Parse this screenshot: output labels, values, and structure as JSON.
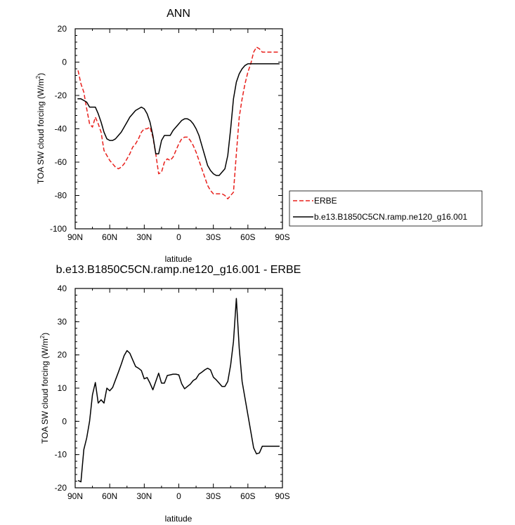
{
  "chart_data": [
    {
      "type": "line",
      "title": "ANN",
      "xlabel": "latitude",
      "ylabel_main": "TOA SW cloud forcing (W/m",
      "ylabel_sup": "2",
      "ylabel_tail": ")",
      "xlim": [
        90,
        -90
      ],
      "ylim": [
        -100,
        20
      ],
      "xticks": [
        {
          "value": 90,
          "label": "90N"
        },
        {
          "value": 60,
          "label": "60N"
        },
        {
          "value": 30,
          "label": "30N"
        },
        {
          "value": 0,
          "label": "0"
        },
        {
          "value": -30,
          "label": "30S"
        },
        {
          "value": -60,
          "label": "60S"
        },
        {
          "value": -90,
          "label": "90S"
        }
      ],
      "yticks": [
        20,
        0,
        -20,
        -40,
        -60,
        -80,
        -100
      ],
      "legend_position": "right",
      "series": [
        {
          "name": "ERBE",
          "color": "#e8201c",
          "dash": "dashed",
          "x": [
            87.5,
            85,
            82.5,
            80,
            77.5,
            75,
            72.5,
            70,
            67.5,
            65,
            62.5,
            60,
            57.5,
            55,
            52.5,
            50,
            47.5,
            45,
            42.5,
            40,
            37.5,
            35,
            32.5,
            30,
            27.5,
            25,
            22.5,
            20,
            17.5,
            15,
            12.5,
            10,
            7.5,
            5,
            2.5,
            0,
            -2.5,
            -5,
            -7.5,
            -10,
            -12.5,
            -15,
            -17.5,
            -20,
            -22.5,
            -25,
            -27.5,
            -30,
            -32.5,
            -35,
            -37.5,
            -40,
            -42.5,
            -45,
            -47.5,
            -50,
            -52.5,
            -55,
            -57.5,
            -60,
            -62.5,
            -65,
            -67.5,
            -70,
            -72.5,
            -75,
            -77.5,
            -80,
            -82.5,
            -85,
            -87.5
          ],
          "y": [
            -5,
            -13,
            -18,
            -28,
            -37,
            -39,
            -33,
            -37,
            -42,
            -53,
            -56,
            -59,
            -61,
            -63,
            -64,
            -63,
            -61,
            -58,
            -55,
            -51,
            -49,
            -46,
            -42,
            -40,
            -40,
            -39,
            -45,
            -55,
            -67,
            -66,
            -60,
            -58,
            -59,
            -57,
            -53,
            -49,
            -46,
            -45,
            -45,
            -47,
            -50,
            -54,
            -59,
            -64,
            -69,
            -74,
            -77,
            -79,
            -79,
            -79,
            -79,
            -80,
            -82,
            -80,
            -78,
            -55,
            -33,
            -22,
            -13,
            -6,
            -1,
            6,
            9,
            8,
            6,
            6,
            6,
            6,
            6,
            6,
            6
          ]
        },
        {
          "name": "b.e13.B1850C5CN.ramp.ne120_g16.001",
          "color": "#000000",
          "dash": "solid",
          "x": [
            88,
            85,
            82.5,
            80,
            77.5,
            75,
            72.5,
            70,
            67.5,
            65,
            62.5,
            60,
            57.5,
            55,
            52.5,
            50,
            47.5,
            45,
            42.5,
            40,
            37.5,
            35,
            32.5,
            30,
            27.5,
            25,
            22.5,
            20,
            17.5,
            15,
            12.5,
            10,
            7.5,
            5,
            2.5,
            0,
            -2.5,
            -5,
            -7.5,
            -10,
            -12.5,
            -15,
            -17.5,
            -20,
            -22.5,
            -25,
            -27.5,
            -30,
            -32.5,
            -35,
            -37.5,
            -40,
            -42.5,
            -45,
            -47.5,
            -50,
            -52.5,
            -55,
            -57.5,
            -60,
            -62.5,
            -65,
            -67.5,
            -70,
            -72.5,
            -75,
            -77.5,
            -80,
            -82.5,
            -85,
            -87.5
          ],
          "y": [
            -22,
            -22,
            -23,
            -24,
            -27,
            -27,
            -27,
            -31,
            -36,
            -42,
            -46,
            -47,
            -47,
            -46,
            -44,
            -42,
            -39,
            -36,
            -33,
            -31,
            -29,
            -28,
            -27,
            -28,
            -31,
            -36,
            -44,
            -55,
            -55,
            -47,
            -44,
            -44,
            -44,
            -41,
            -39,
            -37,
            -35,
            -34,
            -34,
            -35,
            -37,
            -40,
            -44,
            -50,
            -56,
            -62,
            -65,
            -67,
            -68,
            -68,
            -66,
            -64,
            -56,
            -40,
            -22,
            -12,
            -7,
            -4,
            -2,
            -1,
            -1,
            -1,
            -1,
            -1,
            -1,
            -1,
            -1,
            -1,
            -1,
            -1,
            -1
          ]
        }
      ]
    },
    {
      "type": "line",
      "title": "b.e13.B1850C5CN.ramp.ne120_g16.001 - ERBE",
      "xlabel": "latitude",
      "ylabel_main": "TOA SW cloud forcing (W/m",
      "ylabel_sup": "2",
      "ylabel_tail": ")",
      "xlim": [
        90,
        -90
      ],
      "ylim": [
        -20,
        40
      ],
      "xticks": [
        {
          "value": 90,
          "label": "90N"
        },
        {
          "value": 60,
          "label": "60N"
        },
        {
          "value": 30,
          "label": "30N"
        },
        {
          "value": 0,
          "label": "0"
        },
        {
          "value": -30,
          "label": "30S"
        },
        {
          "value": -60,
          "label": "60S"
        },
        {
          "value": -90,
          "label": "90S"
        }
      ],
      "yticks": [
        40,
        30,
        20,
        10,
        0,
        -10,
        -20
      ],
      "series": [
        {
          "color": "#000000",
          "dash": "solid",
          "x": [
            87.5,
            85,
            82.5,
            80,
            77.5,
            75,
            72.5,
            70,
            67.5,
            65,
            62.5,
            60,
            57.5,
            55,
            52.5,
            50,
            47.5,
            45,
            42.5,
            40,
            37.5,
            35,
            32.5,
            30,
            27.5,
            25,
            22.5,
            20,
            17.5,
            15,
            12.5,
            10,
            7.5,
            5,
            2.5,
            0,
            -2.5,
            -5,
            -7.5,
            -10,
            -12.5,
            -15,
            -17.5,
            -20,
            -22.5,
            -25,
            -27.5,
            -30,
            -32.5,
            -35,
            -37.5,
            -40,
            -42.5,
            -45,
            -47.5,
            -50,
            -52.5,
            -55,
            -57.5,
            -60,
            -62.5,
            -65,
            -67.5,
            -70,
            -72.5,
            -75,
            -77.5,
            -80,
            -82.5,
            -85,
            -87.5
          ],
          "y": [
            -17.8,
            -18.2,
            -8.5,
            -5,
            0,
            8,
            11.7,
            5.5,
            6.5,
            5.5,
            10,
            9.2,
            10.2,
            12.5,
            14.8,
            17.2,
            19.8,
            21.3,
            20.5,
            18.5,
            16.5,
            16,
            15.3,
            12.8,
            13.2,
            11.5,
            9.5,
            12,
            14.5,
            11.5,
            11.5,
            13.8,
            14,
            14.2,
            14.2,
            14,
            11.3,
            9.8,
            10.5,
            11.2,
            12.3,
            12.8,
            14.2,
            14.8,
            15.5,
            16,
            15.5,
            13.3,
            12.5,
            11.5,
            10.5,
            10.5,
            12,
            17,
            24,
            37,
            22,
            12,
            7,
            2,
            -3,
            -8,
            -9.8,
            -9.5,
            -7.5,
            -7.5,
            -7.5,
            -7.5,
            -7.5,
            -7.5,
            -7.5
          ]
        }
      ]
    }
  ]
}
